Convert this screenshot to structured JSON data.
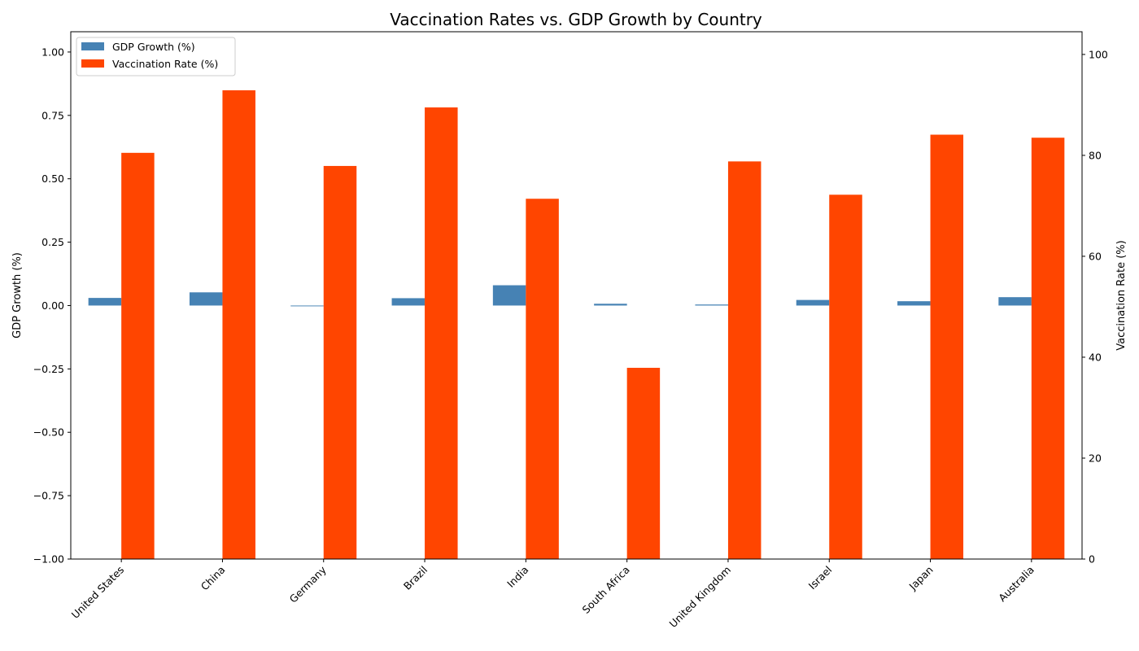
{
  "chart_data": {
    "type": "bar",
    "title": "Vaccination Rates vs. GDP Growth by Country",
    "categories": [
      "United States",
      "China",
      "Germany",
      "Brazil",
      "India",
      "South Africa",
      "United Kingdom",
      "Israel",
      "Japan",
      "Australia"
    ],
    "series": [
      {
        "name": "GDP Growth (%)",
        "axis": "left",
        "color": "#4682B4",
        "values": [
          0.03,
          0.052,
          -0.003,
          0.029,
          0.08,
          0.007,
          0.004,
          0.022,
          0.017,
          0.033
        ]
      },
      {
        "name": "Vaccination Rate (%)",
        "axis": "right",
        "color": "#FF4500",
        "values": [
          80.5,
          92.9,
          77.9,
          89.5,
          71.4,
          37.9,
          78.8,
          72.2,
          84.1,
          83.5
        ]
      }
    ],
    "ylabel_left": "GDP Growth (%)",
    "ylabel_right": "Vaccination Rate (%)",
    "ylim_left": [
      -1.0,
      1.08
    ],
    "ylim_right": [
      0,
      104.5
    ],
    "yticks_left": [
      "1.00",
      "0.75",
      "0.50",
      "0.25",
      "0.00",
      "−0.25",
      "−0.50",
      "−0.75",
      "−1.00"
    ],
    "yticks_left_values": [
      1.0,
      0.75,
      0.5,
      0.25,
      0.0,
      -0.25,
      -0.5,
      -0.75,
      -1.0
    ],
    "yticks_right": [
      "100",
      "80",
      "60",
      "40",
      "20",
      "0"
    ],
    "yticks_right_values": [
      100,
      80,
      60,
      40,
      20,
      0
    ],
    "legend_position": "upper-left",
    "grid": false
  }
}
